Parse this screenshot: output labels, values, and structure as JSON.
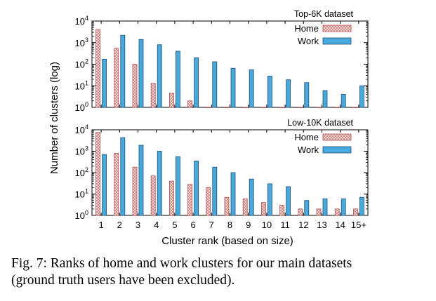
{
  "figure": {
    "ylabel": "Number of clusters (log)",
    "xlabel": "Cluster rank (based on size)",
    "caption_line1": "Fig. 7: Ranks of home and work clusters for our main datasets",
    "caption_line2": "(ground truth users have been excluded)."
  },
  "colors": {
    "home_fill": "#f6e2dd",
    "home_stroke": "#b05050",
    "work_fill": "#4aa8dc",
    "work_stroke": "#1a4f78"
  },
  "chart_data": [
    {
      "type": "bar",
      "title": "Top-6K dataset",
      "yscale": "log",
      "ylim": [
        1,
        10000
      ],
      "y_ticks": [
        "10^0",
        "10^1",
        "10^2",
        "10^3",
        "10^4"
      ],
      "categories": [
        "1",
        "2",
        "3",
        "4",
        "5",
        "6",
        "7",
        "8",
        "9",
        "10",
        "11",
        "12",
        "13",
        "14",
        "15+"
      ],
      "series": [
        {
          "name": "Home",
          "values": [
            4000,
            550,
            100,
            13,
            4.5,
            2,
            1,
            1,
            1,
            1,
            1,
            1,
            1,
            1,
            1
          ]
        },
        {
          "name": "Work",
          "values": [
            170,
            2200,
            1400,
            800,
            400,
            200,
            130,
            65,
            55,
            28,
            19,
            14,
            6,
            4,
            10
          ]
        }
      ],
      "legend_position": "top-right"
    },
    {
      "type": "bar",
      "title": "Low-10K dataset",
      "yscale": "log",
      "ylim": [
        1,
        10000
      ],
      "y_ticks": [
        "10^0",
        "10^1",
        "10^2",
        "10^3",
        "10^4"
      ],
      "categories": [
        "1",
        "2",
        "3",
        "4",
        "5",
        "6",
        "7",
        "8",
        "9",
        "10",
        "11",
        "12",
        "13",
        "14",
        "15+"
      ],
      "series": [
        {
          "name": "Home",
          "values": [
            7500,
            800,
            180,
            70,
            40,
            28,
            20,
            7,
            6,
            4,
            3,
            2,
            2,
            2,
            2
          ]
        },
        {
          "name": "Work",
          "values": [
            700,
            4300,
            1900,
            1000,
            550,
            350,
            180,
            100,
            50,
            30,
            22,
            5,
            6,
            6,
            7
          ]
        }
      ],
      "legend_position": "top-right"
    }
  ]
}
